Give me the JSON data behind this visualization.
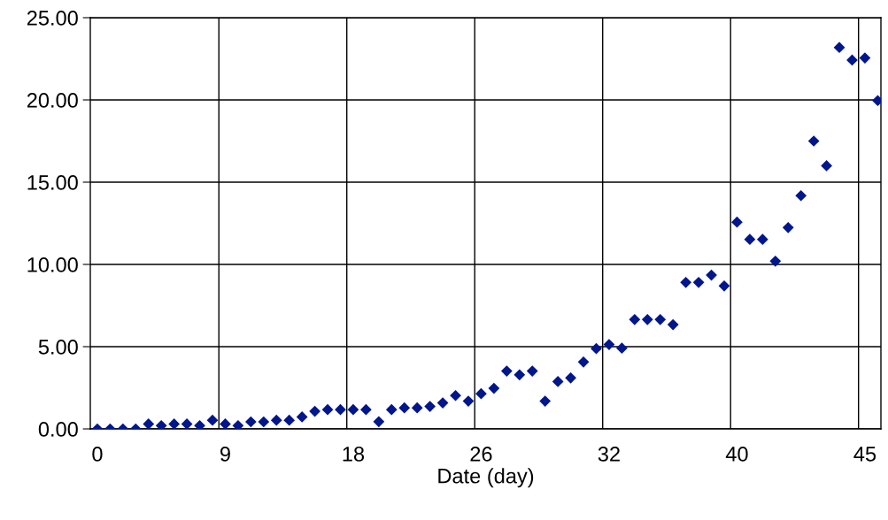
{
  "chart_data": {
    "type": "scatter",
    "xlabel": "Date (day)",
    "categories": [
      "0",
      null,
      null,
      null,
      null,
      null,
      null,
      null,
      null,
      null,
      "9",
      null,
      null,
      null,
      null,
      null,
      null,
      null,
      null,
      null,
      "18",
      null,
      null,
      null,
      null,
      null,
      null,
      null,
      null,
      null,
      "26",
      null,
      null,
      null,
      null,
      null,
      null,
      null,
      null,
      null,
      "32",
      null,
      null,
      null,
      null,
      null,
      null,
      null,
      null,
      null,
      "40",
      null,
      null,
      null,
      null,
      null,
      null,
      null,
      null,
      null,
      "45",
      null
    ],
    "series": [
      {
        "color": "#00168c",
        "values": [
          0,
          0,
          0,
          0,
          0.3,
          0.2,
          0.3,
          0.3,
          0.2,
          0.53,
          0.3,
          0.2,
          0.43,
          0.43,
          0.53,
          0.53,
          0.73,
          1.07,
          1.17,
          1.17,
          1.17,
          1.17,
          0.44,
          1.17,
          1.28,
          1.28,
          1.37,
          1.58,
          2.03,
          1.69,
          2.14,
          2.47,
          3.52,
          3.29,
          3.52,
          1.69,
          2.88,
          3.1,
          4.07,
          4.88,
          5.13,
          4.91,
          6.65,
          6.65,
          6.65,
          6.34,
          8.91,
          8.91,
          9.35,
          8.69,
          12.57,
          11.52,
          11.52,
          10.2,
          12.24,
          14.18,
          17.5,
          16.0,
          23.19,
          22.42,
          22.55,
          19.96
        ]
      }
    ],
    "ylim": [
      0,
      25
    ],
    "yticks": [
      {
        "value": 0,
        "label": "0.00"
      },
      {
        "value": 5,
        "label": "5.00"
      },
      {
        "value": 10,
        "label": "10.00"
      },
      {
        "value": 15,
        "label": "15.00"
      },
      {
        "value": 20,
        "label": "20.00"
      },
      {
        "value": 25,
        "label": "25.00"
      }
    ],
    "grid": true,
    "marker": "diamond",
    "legend": false
  }
}
